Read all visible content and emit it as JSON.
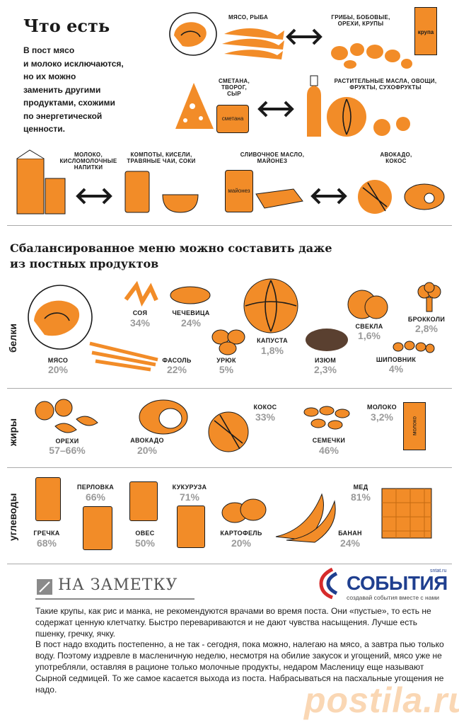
{
  "colors": {
    "accent": "#F28C28",
    "text": "#1a1a1a",
    "gray": "#9a9a9a",
    "brand_blue": "#1f3f8f",
    "brand_red": "#d62b2b"
  },
  "header": {
    "title": "Что есть",
    "lead": [
      "В пост мясо",
      "и молоко исключаются,",
      "но их можно",
      "заменить другими",
      "продуктами, схожими",
      "по энергетической",
      "ценности."
    ]
  },
  "swaps": {
    "meat_fish": "МЯСО, РЫБА",
    "mushrooms": [
      "ГРИБЫ, БОБОВЫЕ,",
      "ОРЕХИ, КРУПЫ"
    ],
    "groats_pack": "крупа",
    "dairy": [
      "СМЕТАНА,",
      "ТВОРОГ,",
      "СЫР"
    ],
    "smetana_jar": "сметана",
    "veg_oils": [
      "РАСТИТЕЛЬНЫЕ МАСЛА, ОВОЩИ,",
      "ФРУКТЫ, СУХОФРУКТЫ"
    ],
    "milk": [
      "МОЛОКО,",
      "КИСЛОМОЛОЧНЫЕ",
      "НАПИТКИ"
    ],
    "compotes": [
      "КОМПОТЫ, КИСЕЛИ,",
      "ТРАВЯНЫЕ ЧАИ, СОКИ"
    ],
    "butter": [
      "СЛИВОЧНОЕ МАСЛО,",
      "МАЙОНЕЗ"
    ],
    "mayo_jar": "майонез",
    "avocado": [
      "АВОКАДО,",
      "КОКОС"
    ]
  },
  "menu": {
    "heading": [
      "Сбалансированное меню можно составить даже",
      "из постных продуктов"
    ],
    "proteins": {
      "label": "белки",
      "items": [
        {
          "name": "МЯСО",
          "pct": "20%"
        },
        {
          "name": "СОЯ",
          "pct": "34%"
        },
        {
          "name": "ЧЕЧЕВИЦА",
          "pct": "24%"
        },
        {
          "name": "ФАСОЛЬ",
          "pct": "22%"
        },
        {
          "name": "УРЮК",
          "pct": "5%"
        },
        {
          "name": "КАПУСТА",
          "pct": "1,8%"
        },
        {
          "name": "ИЗЮМ",
          "pct": "2,3%"
        },
        {
          "name": "СВЕКЛА",
          "pct": "1,6%"
        },
        {
          "name": "БРОККОЛИ",
          "pct": "2,8%"
        },
        {
          "name": "ШИПОВНИК",
          "pct": "4%"
        }
      ]
    },
    "fats": {
      "label": "жиры",
      "items": [
        {
          "name": "ОРЕХИ",
          "pct": "57–66%"
        },
        {
          "name": "АВОКАДО",
          "pct": "20%"
        },
        {
          "name": "КОКОС",
          "pct": "33%"
        },
        {
          "name": "СЕМЕЧКИ",
          "pct": "46%"
        },
        {
          "name": "МОЛОКО",
          "pct": "3,2%"
        }
      ],
      "milk_pack": "молоко"
    },
    "carbs": {
      "label": "углеводы",
      "items": [
        {
          "name": "ГРЕЧКА",
          "pct": "68%"
        },
        {
          "name": "ПЕРЛОВКА",
          "pct": "66%"
        },
        {
          "name": "ОВЕС",
          "pct": "50%"
        },
        {
          "name": "КУКУРУЗА",
          "pct": "71%"
        },
        {
          "name": "КАРТОФЕЛЬ",
          "pct": "20%"
        },
        {
          "name": "БАНАН",
          "pct": "24%"
        },
        {
          "name": "МЕД",
          "pct": "81%"
        }
      ]
    }
  },
  "note": {
    "title": "НА ЗАМЕТКУ",
    "paragraphs": [
      "Такие крупы, как рис и манка, не рекомендуются врачами во время поста. Они «пустые», то есть не содержат ценную клетчатку. Быстро перевариваются и не дают чувства насыщения. Лучше есть пшенку, гречку, ячку.",
      "В пост надо входить постепенно, а не так - сегодня, пока можно, налегаю на мясо, а завтра пью только воду. Поэтому издревле в масленичную неделю, несмотря на обилие закусок и угощений, мясо уже не употребляли, оставляя в рационе только молочные продукты, недаром Масленицу еще называют Сырной седмицей. То же самое касается выхода из поста. Набрасываться на пасхальные угощения не надо."
    ]
  },
  "brand": {
    "site": "sntat.ru",
    "name": "СОБЫТИЯ",
    "tagline": "создавай события вместе с нами"
  },
  "watermark": "postila.ru"
}
